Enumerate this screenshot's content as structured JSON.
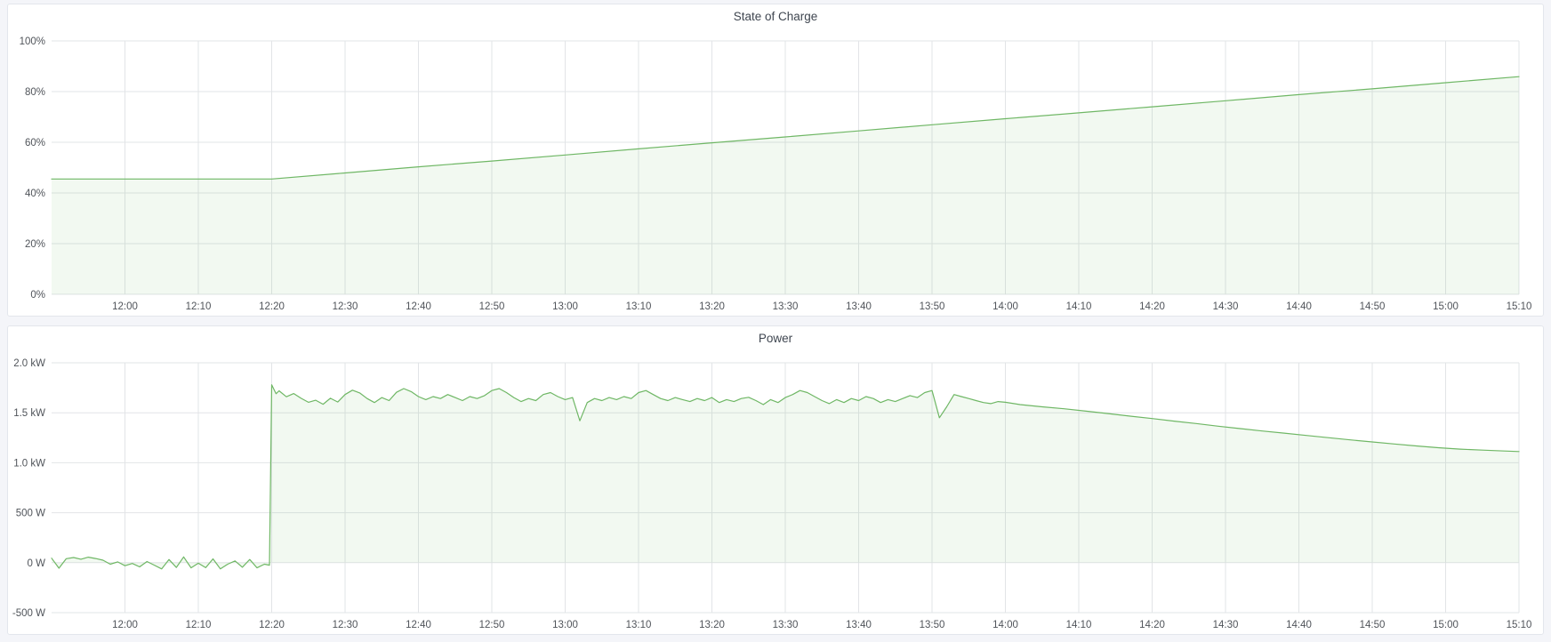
{
  "page": {
    "background_color": "#f4f5f9",
    "panel_background": "#ffffff",
    "panel_border_color": "#e3e6ec",
    "grid_color": "#e2e4e7",
    "tick_text_color": "#50545a",
    "title_text_color": "#3f4650"
  },
  "chart_data": [
    {
      "type": "area",
      "title": "State of Charge",
      "unit": "%",
      "legend": "none",
      "grid": "on",
      "xlim": [
        0,
        200
      ],
      "ylim": [
        0,
        100
      ],
      "x_unit": "minutes since 11:50",
      "x_tick_values": [
        10,
        20,
        30,
        40,
        50,
        60,
        70,
        80,
        90,
        100,
        110,
        120,
        130,
        140,
        150,
        160,
        170,
        180,
        190,
        200
      ],
      "x_tick_labels": [
        "12:00",
        "12:10",
        "12:20",
        "12:30",
        "12:40",
        "12:50",
        "13:00",
        "13:10",
        "13:20",
        "13:30",
        "13:40",
        "13:50",
        "14:00",
        "14:10",
        "14:20",
        "14:30",
        "14:40",
        "14:50",
        "15:00",
        "15:10"
      ],
      "y_tick_values": [
        0,
        20,
        40,
        60,
        80,
        100
      ],
      "y_tick_labels": [
        "0%",
        "20%",
        "40%",
        "60%",
        "80%",
        "100%"
      ],
      "series": [
        {
          "name": "State of Charge",
          "line_color": "#6fb765",
          "fill_color": "rgba(115,191,105,0.09)",
          "points": [
            [
              0,
              45.5
            ],
            [
              10,
              45.5
            ],
            [
              20,
              45.5
            ],
            [
              30,
              45.5
            ],
            [
              40,
              47.9
            ],
            [
              50,
              50.3
            ],
            [
              60,
              52.6
            ],
            [
              70,
              55.0
            ],
            [
              80,
              57.4
            ],
            [
              90,
              59.8
            ],
            [
              100,
              62.1
            ],
            [
              110,
              64.5
            ],
            [
              120,
              66.9
            ],
            [
              130,
              69.3
            ],
            [
              140,
              71.6
            ],
            [
              150,
              74.0
            ],
            [
              160,
              76.4
            ],
            [
              170,
              78.8
            ],
            [
              180,
              81.1
            ],
            [
              190,
              83.5
            ],
            [
              200,
              85.9
            ]
          ]
        }
      ]
    },
    {
      "type": "area",
      "title": "Power",
      "unit": "W",
      "legend": "none",
      "grid": "on",
      "xlim": [
        0,
        200
      ],
      "ylim": [
        -500,
        2000
      ],
      "x_unit": "minutes since 11:50",
      "x_tick_values": [
        10,
        20,
        30,
        40,
        50,
        60,
        70,
        80,
        90,
        100,
        110,
        120,
        130,
        140,
        150,
        160,
        170,
        180,
        190,
        200
      ],
      "x_tick_labels": [
        "12:00",
        "12:10",
        "12:20",
        "12:30",
        "12:40",
        "12:50",
        "13:00",
        "13:10",
        "13:20",
        "13:30",
        "13:40",
        "13:50",
        "14:00",
        "14:10",
        "14:20",
        "14:30",
        "14:40",
        "14:50",
        "15:00",
        "15:10"
      ],
      "y_tick_values": [
        -500,
        0,
        500,
        1000,
        1500,
        2000
      ],
      "y_tick_labels": [
        "-500 W",
        "0 W",
        "500 W",
        "1.0 kW",
        "1.5 kW",
        "2.0 kW"
      ],
      "series": [
        {
          "name": "Power",
          "line_color": "#6fb765",
          "fill_color": "rgba(115,191,105,0.09)",
          "points": [
            [
              0,
              45
            ],
            [
              1,
              -55
            ],
            [
              2,
              40
            ],
            [
              3,
              52
            ],
            [
              4,
              35
            ],
            [
              5,
              55
            ],
            [
              6,
              42
            ],
            [
              7,
              25
            ],
            [
              8,
              -15
            ],
            [
              9,
              8
            ],
            [
              10,
              -30
            ],
            [
              11,
              -8
            ],
            [
              12,
              -42
            ],
            [
              13,
              12
            ],
            [
              14,
              -25
            ],
            [
              15,
              -62
            ],
            [
              16,
              32
            ],
            [
              17,
              -48
            ],
            [
              18,
              58
            ],
            [
              19,
              -52
            ],
            [
              20,
              -5
            ],
            [
              21,
              -50
            ],
            [
              22,
              38
            ],
            [
              23,
              -62
            ],
            [
              24,
              -15
            ],
            [
              25,
              18
            ],
            [
              26,
              -45
            ],
            [
              27,
              32
            ],
            [
              28,
              -52
            ],
            [
              29,
              -15
            ],
            [
              29.7,
              -25
            ],
            [
              30,
              1780
            ],
            [
              30.6,
              1690
            ],
            [
              31,
              1720
            ],
            [
              32,
              1660
            ],
            [
              33,
              1692
            ],
            [
              34,
              1645
            ],
            [
              35,
              1605
            ],
            [
              36,
              1625
            ],
            [
              37,
              1585
            ],
            [
              38,
              1645
            ],
            [
              39,
              1608
            ],
            [
              40,
              1682
            ],
            [
              41,
              1726
            ],
            [
              42,
              1698
            ],
            [
              43,
              1642
            ],
            [
              44,
              1602
            ],
            [
              45,
              1652
            ],
            [
              46,
              1622
            ],
            [
              47,
              1705
            ],
            [
              48,
              1742
            ],
            [
              49,
              1712
            ],
            [
              50,
              1662
            ],
            [
              51,
              1632
            ],
            [
              52,
              1662
            ],
            [
              53,
              1642
            ],
            [
              54,
              1682
            ],
            [
              55,
              1652
            ],
            [
              56,
              1622
            ],
            [
              57,
              1662
            ],
            [
              58,
              1642
            ],
            [
              59,
              1672
            ],
            [
              60,
              1722
            ],
            [
              61,
              1742
            ],
            [
              62,
              1702
            ],
            [
              63,
              1652
            ],
            [
              64,
              1612
            ],
            [
              65,
              1642
            ],
            [
              66,
              1622
            ],
            [
              67,
              1682
            ],
            [
              68,
              1702
            ],
            [
              69,
              1662
            ],
            [
              70,
              1632
            ],
            [
              71,
              1652
            ],
            [
              72,
              1420
            ],
            [
              73,
              1602
            ],
            [
              74,
              1642
            ],
            [
              75,
              1622
            ],
            [
              76,
              1652
            ],
            [
              77,
              1632
            ],
            [
              78,
              1662
            ],
            [
              79,
              1642
            ],
            [
              80,
              1702
            ],
            [
              81,
              1722
            ],
            [
              82,
              1682
            ],
            [
              83,
              1642
            ],
            [
              84,
              1622
            ],
            [
              85,
              1652
            ],
            [
              86,
              1632
            ],
            [
              87,
              1612
            ],
            [
              88,
              1642
            ],
            [
              89,
              1622
            ],
            [
              90,
              1652
            ],
            [
              91,
              1602
            ],
            [
              92,
              1632
            ],
            [
              93,
              1612
            ],
            [
              94,
              1642
            ],
            [
              95,
              1655
            ],
            [
              96,
              1622
            ],
            [
              97,
              1582
            ],
            [
              98,
              1632
            ],
            [
              99,
              1602
            ],
            [
              100,
              1652
            ],
            [
              101,
              1682
            ],
            [
              102,
              1722
            ],
            [
              103,
              1702
            ],
            [
              104,
              1662
            ],
            [
              105,
              1622
            ],
            [
              106,
              1592
            ],
            [
              107,
              1632
            ],
            [
              108,
              1602
            ],
            [
              109,
              1642
            ],
            [
              110,
              1622
            ],
            [
              111,
              1662
            ],
            [
              112,
              1642
            ],
            [
              113,
              1602
            ],
            [
              114,
              1632
            ],
            [
              115,
              1612
            ],
            [
              116,
              1642
            ],
            [
              117,
              1672
            ],
            [
              118,
              1652
            ],
            [
              119,
              1702
            ],
            [
              120,
              1722
            ],
            [
              121,
              1450
            ],
            [
              122,
              1560
            ],
            [
              123,
              1682
            ],
            [
              124,
              1662
            ],
            [
              125,
              1642
            ],
            [
              126,
              1622
            ],
            [
              127,
              1602
            ],
            [
              128,
              1592
            ],
            [
              129,
              1612
            ],
            [
              130,
              1605
            ],
            [
              132,
              1582
            ],
            [
              135,
              1560
            ],
            [
              138,
              1540
            ],
            [
              141,
              1516
            ],
            [
              144,
              1492
            ],
            [
              147,
              1466
            ],
            [
              150,
              1442
            ],
            [
              153,
              1416
            ],
            [
              156,
              1392
            ],
            [
              159,
              1366
            ],
            [
              162,
              1342
            ],
            [
              165,
              1318
            ],
            [
              168,
              1296
            ],
            [
              171,
              1273
            ],
            [
              174,
              1251
            ],
            [
              177,
              1229
            ],
            [
              180,
              1208
            ],
            [
              183,
              1188
            ],
            [
              186,
              1168
            ],
            [
              189,
              1150
            ],
            [
              192,
              1136
            ],
            [
              195,
              1126
            ],
            [
              198,
              1117
            ],
            [
              200,
              1112
            ]
          ]
        }
      ]
    }
  ]
}
